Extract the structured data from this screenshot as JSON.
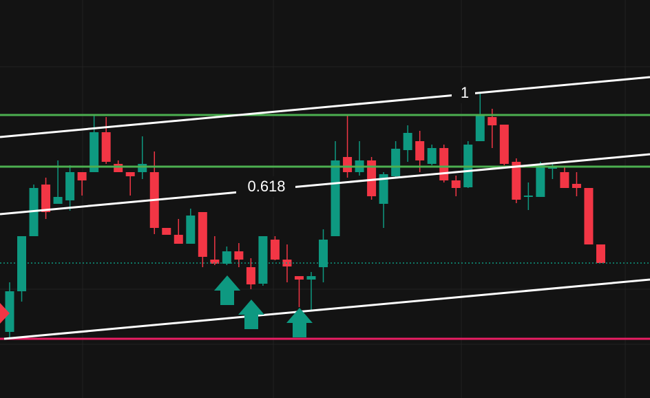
{
  "chart_data": {
    "type": "candlestick",
    "open": [
      96,
      155,
      235,
      310,
      282,
      287,
      328,
      328,
      386,
      340,
      328,
      328,
      328,
      247,
      237,
      224,
      270,
      201,
      195,
      213,
      190,
      166,
      230,
      201,
      177,
      172,
      190,
      235,
      350,
      328,
      345,
      282,
      322,
      360,
      373,
      340,
      363,
      316,
      306,
      373,
      408,
      397,
      343,
      292,
      292,
      333,
      328,
      311,
      305,
      223
    ],
    "high": [
      168,
      235,
      310,
      320,
      345,
      338,
      328,
      410,
      408,
      345,
      328,
      380,
      358,
      247,
      260,
      275,
      270,
      235,
      220,
      225,
      203,
      235,
      235,
      223,
      177,
      183,
      245,
      373,
      410,
      373,
      350,
      328,
      373,
      396,
      388,
      368,
      368,
      323,
      373,
      443,
      420,
      397,
      348,
      313,
      343,
      340,
      335,
      328,
      305,
      223
    ],
    "low": [
      88,
      140,
      235,
      260,
      282,
      272,
      294,
      328,
      340,
      328,
      294,
      318,
      238,
      237,
      224,
      224,
      190,
      193,
      193,
      190,
      158,
      163,
      200,
      168,
      132,
      128,
      168,
      235,
      320,
      323,
      288,
      247,
      320,
      343,
      328,
      338,
      313,
      293,
      305,
      373,
      363,
      338,
      283,
      273,
      292,
      318,
      305,
      293,
      223,
      196
    ],
    "close": [
      155,
      235,
      305,
      270,
      292,
      328,
      316,
      386,
      343,
      328,
      322,
      340,
      247,
      237,
      224,
      265,
      205,
      195,
      213,
      201,
      165,
      235,
      201,
      191,
      172,
      177,
      230,
      345,
      328,
      345,
      293,
      325,
      362,
      385,
      345,
      363,
      316,
      305,
      368,
      410,
      396,
      340,
      288,
      294,
      338,
      335,
      305,
      305,
      223,
      196
    ],
    "ylim": [
      0,
      578
    ],
    "up_color": "#0e9981",
    "down_color": "#f23645",
    "annotations": [
      "1",
      "0.618"
    ]
  }
}
